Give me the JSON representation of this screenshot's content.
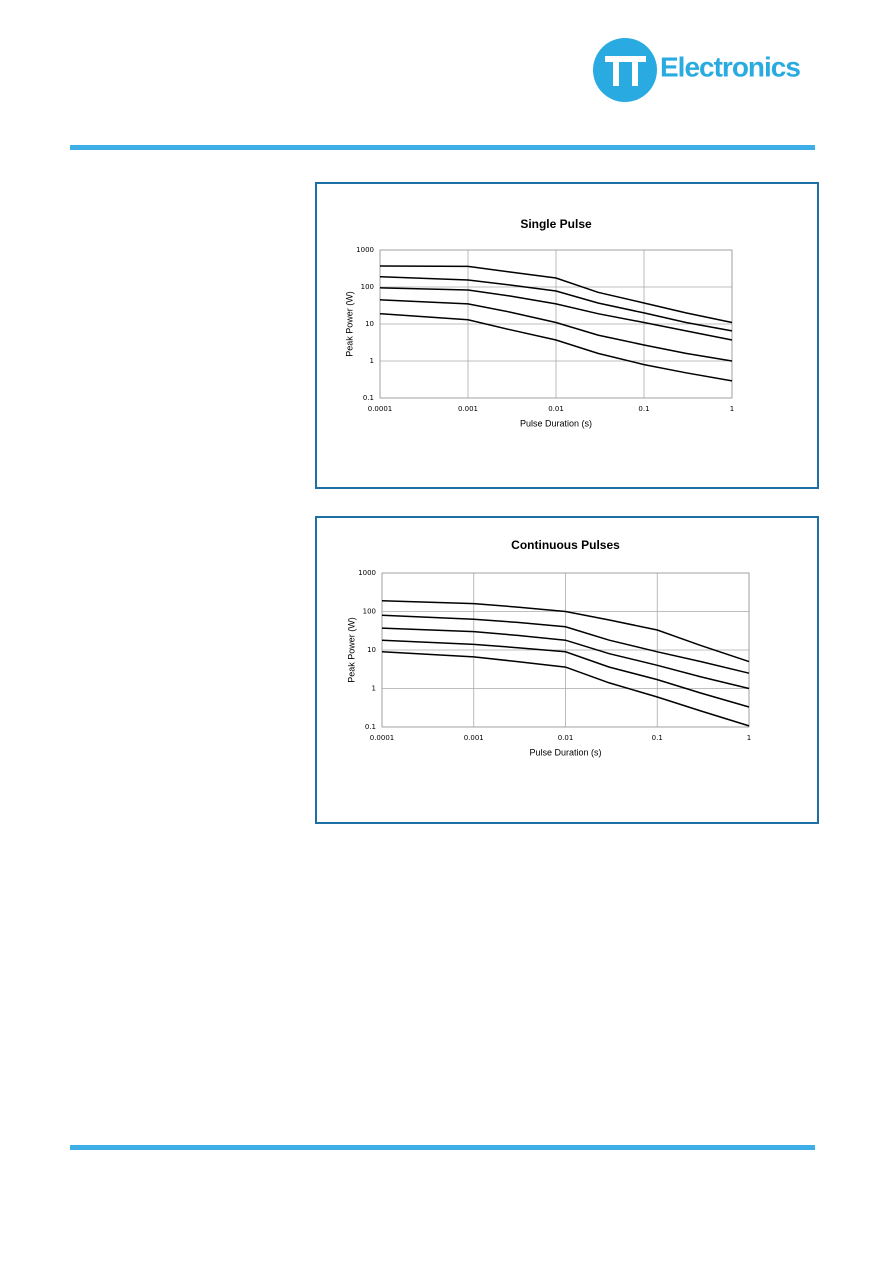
{
  "logo_text": "Electronics",
  "chart_data": [
    {
      "type": "line",
      "title": "Single Pulse",
      "xlabel": "Pulse Duration (s)",
      "ylabel": "Peak Power (W)",
      "xscale": "log",
      "yscale": "log",
      "grid": true,
      "color": "#000000",
      "xlim": [
        0.0001,
        1
      ],
      "ylim": [
        0.1,
        1000
      ],
      "xticks": [
        0.0001,
        0.001,
        0.01,
        0.1,
        1
      ],
      "yticks": [
        0.1,
        1,
        10,
        100,
        1000
      ],
      "x": [
        0.0001,
        0.001,
        0.003,
        0.01,
        0.03,
        0.1,
        0.3,
        1
      ],
      "series": [
        {
          "values": [
            370,
            360,
            255,
            175,
            72,
            37,
            20,
            11
          ]
        },
        {
          "values": [
            190,
            155,
            113,
            78,
            37,
            20,
            11,
            6.5
          ]
        },
        {
          "values": [
            95,
            83,
            57,
            35,
            19,
            11,
            6.5,
            3.7
          ]
        },
        {
          "values": [
            45,
            35,
            21,
            11,
            5,
            2.7,
            1.6,
            1.0
          ]
        },
        {
          "values": [
            19,
            13,
            7,
            3.7,
            1.6,
            0.8,
            0.48,
            0.29
          ]
        }
      ]
    },
    {
      "type": "line",
      "title": "Continuous Pulses",
      "xlabel": "Pulse Duration (s)",
      "ylabel": "Peak Power (W)",
      "xscale": "log",
      "yscale": "log",
      "grid": true,
      "color": "#000000",
      "xlim": [
        0.0001,
        1
      ],
      "ylim": [
        0.1,
        1000
      ],
      "xticks": [
        0.0001,
        0.001,
        0.01,
        0.1,
        1
      ],
      "yticks": [
        0.1,
        1,
        10,
        100,
        1000
      ],
      "x": [
        0.0001,
        0.001,
        0.003,
        0.01,
        0.03,
        0.1,
        0.3,
        1
      ],
      "series": [
        {
          "values": [
            190,
            160,
            130,
            100,
            60,
            33,
            13,
            5
          ]
        },
        {
          "values": [
            80,
            63,
            52,
            40,
            18,
            9,
            5,
            2.5
          ]
        },
        {
          "values": [
            37,
            30,
            24,
            18,
            8,
            4,
            2,
            1
          ]
        },
        {
          "values": [
            18,
            14,
            11.5,
            9,
            3.6,
            1.7,
            0.76,
            0.33
          ]
        },
        {
          "values": [
            9,
            6.6,
            5,
            3.6,
            1.4,
            0.6,
            0.26,
            0.107
          ]
        }
      ]
    }
  ]
}
